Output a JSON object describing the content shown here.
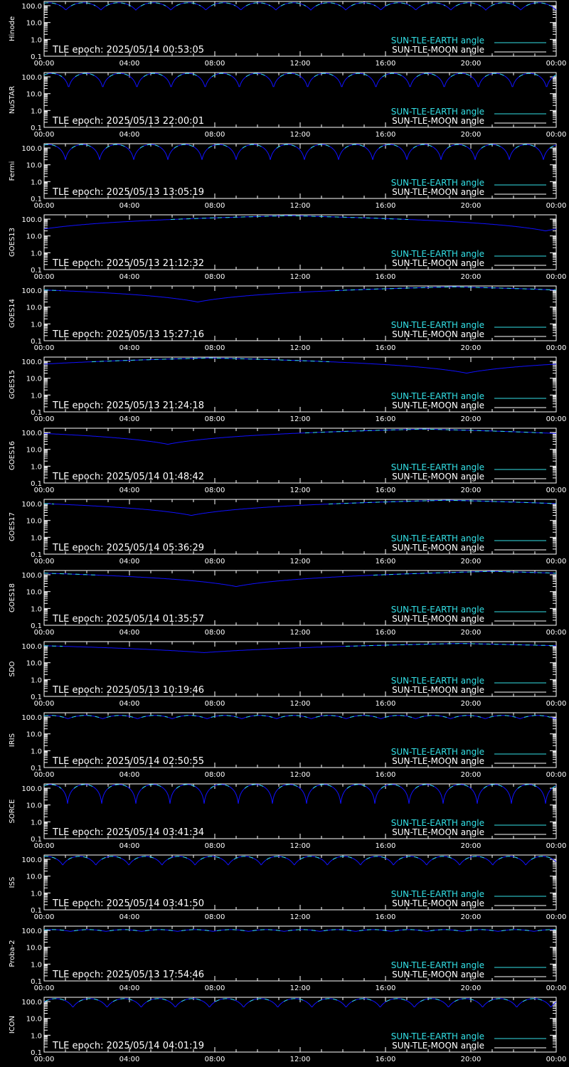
{
  "colors": {
    "background": "#000000",
    "axis": "#ffffff",
    "earth": "#33e0e6",
    "moon": "#ffffff",
    "curve": "#1010ff"
  },
  "legend": {
    "earth_label": "SUN-TLE-EARTH angle",
    "moon_label": "SUN-TLE-MOON angle"
  },
  "chart_data": [
    {
      "type": "line",
      "ylabel": "Hinode",
      "epoch_text": "TLE epoch: 2025/05/14 00:53:05",
      "xlim": [
        0,
        24
      ],
      "ylim": [
        0.1,
        180
      ],
      "yscale": "log",
      "x_tick_labels": [
        "00:00",
        "04:00",
        "08:00",
        "12:00",
        "16:00",
        "20:00",
        "00:00"
      ],
      "y_tick_labels": [
        "100.0",
        "10.0",
        "1.0",
        "0.1"
      ],
      "series": [
        {
          "name": "SUN-TLE-EARTH angle",
          "model": "periodic",
          "period_hours": 1.64,
          "max_deg": 150,
          "min_deg": 55,
          "phase_hours": 0.2
        }
      ]
    },
    {
      "type": "line",
      "ylabel": "NuSTAR",
      "epoch_text": "TLE epoch: 2025/05/13 22:00:01",
      "xlim": [
        0,
        24
      ],
      "ylim": [
        0.1,
        180
      ],
      "yscale": "log",
      "x_tick_labels": [
        "00:00",
        "04:00",
        "08:00",
        "12:00",
        "16:00",
        "20:00",
        "00:00"
      ],
      "y_tick_labels": [
        "100.0",
        "10.0",
        "1.0",
        "0.1"
      ],
      "series": [
        {
          "name": "SUN-TLE-EARTH angle",
          "model": "periodic",
          "period_hours": 1.6,
          "max_deg": 160,
          "min_deg": 22,
          "phase_hours": 0.35
        }
      ]
    },
    {
      "type": "line",
      "ylabel": "Fermi",
      "epoch_text": "TLE epoch: 2025/05/13 13:05:19",
      "xlim": [
        0,
        24
      ],
      "ylim": [
        0.1,
        180
      ],
      "yscale": "log",
      "x_tick_labels": [
        "00:00",
        "04:00",
        "08:00",
        "12:00",
        "16:00",
        "20:00",
        "00:00"
      ],
      "y_tick_labels": [
        "100.0",
        "10.0",
        "1.0",
        "0.1"
      ],
      "series": [
        {
          "name": "SUN-TLE-EARTH angle",
          "model": "periodic",
          "period_hours": 1.6,
          "max_deg": 160,
          "min_deg": 20,
          "phase_hours": 0.2
        }
      ]
    },
    {
      "type": "line",
      "ylabel": "GOES13",
      "epoch_text": "TLE epoch: 2025/05/13 21:12:32",
      "xlim": [
        0,
        24
      ],
      "ylim": [
        0.1,
        180
      ],
      "yscale": "log",
      "x_tick_labels": [
        "00:00",
        "04:00",
        "08:00",
        "12:00",
        "16:00",
        "20:00",
        "00:00"
      ],
      "y_tick_labels": [
        "100.0",
        "10.0",
        "1.0",
        "0.1"
      ],
      "series": [
        {
          "name": "SUN-TLE-EARTH angle",
          "model": "geo",
          "peak_hour": 11.5,
          "max_deg": 160,
          "min_deg": 20
        }
      ]
    },
    {
      "type": "line",
      "ylabel": "GOES14",
      "epoch_text": "TLE epoch: 2025/05/13 15:27:16",
      "xlim": [
        0,
        24
      ],
      "ylim": [
        0.1,
        180
      ],
      "yscale": "log",
      "x_tick_labels": [
        "00:00",
        "04:00",
        "08:00",
        "12:00",
        "16:00",
        "20:00",
        "00:00"
      ],
      "y_tick_labels": [
        "100.0",
        "10.0",
        "1.0",
        "0.1"
      ],
      "series": [
        {
          "name": "SUN-TLE-EARTH angle",
          "model": "geo",
          "peak_hour": 19.2,
          "max_deg": 160,
          "min_deg": 20
        }
      ]
    },
    {
      "type": "line",
      "ylabel": "GOES15",
      "epoch_text": "TLE epoch: 2025/05/13 21:24:18",
      "xlim": [
        0,
        24
      ],
      "ylim": [
        0.1,
        180
      ],
      "yscale": "log",
      "x_tick_labels": [
        "00:00",
        "04:00",
        "08:00",
        "12:00",
        "16:00",
        "20:00",
        "00:00"
      ],
      "y_tick_labels": [
        "100.0",
        "10.0",
        "1.0",
        "0.1"
      ],
      "series": [
        {
          "name": "SUN-TLE-EARTH angle",
          "model": "geo",
          "peak_hour": 7.8,
          "max_deg": 160,
          "min_deg": 20
        }
      ]
    },
    {
      "type": "line",
      "ylabel": "GOES16",
      "epoch_text": "TLE epoch: 2025/05/14 01:48:42",
      "xlim": [
        0,
        24
      ],
      "ylim": [
        0.1,
        180
      ],
      "yscale": "log",
      "x_tick_labels": [
        "00:00",
        "04:00",
        "08:00",
        "12:00",
        "16:00",
        "20:00",
        "00:00"
      ],
      "y_tick_labels": [
        "100.0",
        "10.0",
        "1.0",
        "0.1"
      ],
      "series": [
        {
          "name": "SUN-TLE-EARTH angle",
          "model": "geo",
          "peak_hour": 17.8,
          "max_deg": 160,
          "min_deg": 20
        }
      ]
    },
    {
      "type": "line",
      "ylabel": "GOES17",
      "epoch_text": "TLE epoch: 2025/05/14 05:36:29",
      "xlim": [
        0,
        24
      ],
      "ylim": [
        0.1,
        180
      ],
      "yscale": "log",
      "x_tick_labels": [
        "00:00",
        "04:00",
        "08:00",
        "12:00",
        "16:00",
        "20:00",
        "00:00"
      ],
      "y_tick_labels": [
        "100.0",
        "10.0",
        "1.0",
        "0.1"
      ],
      "series": [
        {
          "name": "SUN-TLE-EARTH angle",
          "model": "geo",
          "peak_hour": 18.9,
          "max_deg": 160,
          "min_deg": 20
        }
      ]
    },
    {
      "type": "line",
      "ylabel": "GOES18",
      "epoch_text": "TLE epoch: 2025/05/14 01:35:57",
      "xlim": [
        0,
        24
      ],
      "ylim": [
        0.1,
        180
      ],
      "yscale": "log",
      "x_tick_labels": [
        "00:00",
        "04:00",
        "08:00",
        "12:00",
        "16:00",
        "20:00",
        "00:00"
      ],
      "y_tick_labels": [
        "100.0",
        "10.0",
        "1.0",
        "0.1"
      ],
      "series": [
        {
          "name": "SUN-TLE-EARTH angle",
          "model": "geo",
          "peak_hour": 21.0,
          "max_deg": 160,
          "min_deg": 20
        }
      ]
    },
    {
      "type": "line",
      "ylabel": "SDO",
      "epoch_text": "TLE epoch: 2025/05/13 10:19:46",
      "xlim": [
        0,
        24
      ],
      "ylim": [
        0.1,
        180
      ],
      "yscale": "log",
      "x_tick_labels": [
        "00:00",
        "04:00",
        "08:00",
        "12:00",
        "16:00",
        "20:00",
        "00:00"
      ],
      "y_tick_labels": [
        "100.0",
        "10.0",
        "1.0",
        "0.1"
      ],
      "series": [
        {
          "name": "SUN-TLE-EARTH angle",
          "model": "geo",
          "peak_hour": 19.5,
          "max_deg": 140,
          "min_deg": 40
        }
      ]
    },
    {
      "type": "line",
      "ylabel": "IRIS",
      "epoch_text": "TLE epoch: 2025/05/14 02:50:55",
      "xlim": [
        0,
        24
      ],
      "ylim": [
        0.1,
        180
      ],
      "yscale": "log",
      "x_tick_labels": [
        "00:00",
        "04:00",
        "08:00",
        "12:00",
        "16:00",
        "20:00",
        "00:00"
      ],
      "y_tick_labels": [
        "100.0",
        "10.0",
        "1.0",
        "0.1"
      ],
      "series": [
        {
          "name": "SUN-TLE-EARTH angle",
          "model": "periodic",
          "period_hours": 1.63,
          "max_deg": 125,
          "min_deg": 80,
          "phase_hours": 0.3
        }
      ]
    },
    {
      "type": "line",
      "ylabel": "SORCE",
      "epoch_text": "TLE epoch: 2025/05/14 03:41:34",
      "xlim": [
        0,
        24
      ],
      "ylim": [
        0.1,
        180
      ],
      "yscale": "log",
      "x_tick_labels": [
        "00:00",
        "04:00",
        "08:00",
        "12:00",
        "16:00",
        "20:00",
        "00:00"
      ],
      "y_tick_labels": [
        "100.0",
        "10.0",
        "1.0",
        "0.1"
      ],
      "series": [
        {
          "name": "SUN-TLE-EARTH angle",
          "model": "periodic",
          "period_hours": 1.6,
          "max_deg": 165,
          "min_deg": 12,
          "phase_hours": 0.3
        }
      ]
    },
    {
      "type": "line",
      "ylabel": "ISS",
      "epoch_text": "TLE epoch: 2025/05/14 03:41:50",
      "xlim": [
        0,
        24
      ],
      "ylim": [
        0.1,
        180
      ],
      "yscale": "log",
      "x_tick_labels": [
        "00:00",
        "04:00",
        "08:00",
        "12:00",
        "16:00",
        "20:00",
        "00:00"
      ],
      "y_tick_labels": [
        "100.0",
        "10.0",
        "1.0",
        "0.1"
      ],
      "series": [
        {
          "name": "SUN-TLE-EARTH angle",
          "model": "periodic",
          "period_hours": 1.55,
          "max_deg": 150,
          "min_deg": 45,
          "phase_hours": 0.1
        }
      ]
    },
    {
      "type": "line",
      "ylabel": "Proba-2",
      "epoch_text": "TLE epoch: 2025/05/13 17:54:46",
      "xlim": [
        0,
        24
      ],
      "ylim": [
        0.1,
        180
      ],
      "yscale": "log",
      "x_tick_labels": [
        "00:00",
        "04:00",
        "08:00",
        "12:00",
        "16:00",
        "20:00",
        "00:00"
      ],
      "y_tick_labels": [
        "100.0",
        "10.0",
        "1.0",
        "0.1"
      ],
      "series": [
        {
          "name": "SUN-TLE-EARTH angle",
          "model": "periodic",
          "period_hours": 1.67,
          "max_deg": 112,
          "min_deg": 88,
          "phase_hours": 0.4
        }
      ]
    },
    {
      "type": "line",
      "ylabel": "ICON",
      "epoch_text": "TLE epoch: 2025/05/14 04:01:19",
      "xlim": [
        0,
        24
      ],
      "ylim": [
        0.1,
        180
      ],
      "yscale": "log",
      "x_tick_labels": [
        "00:00",
        "04:00",
        "08:00",
        "12:00",
        "16:00",
        "20:00",
        "00:00"
      ],
      "y_tick_labels": [
        "100.0",
        "10.0",
        "1.0",
        "0.1"
      ],
      "series": [
        {
          "name": "SUN-TLE-EARTH angle",
          "model": "periodic",
          "period_hours": 1.6,
          "max_deg": 150,
          "min_deg": 45,
          "phase_hours": 0.55
        }
      ]
    }
  ]
}
